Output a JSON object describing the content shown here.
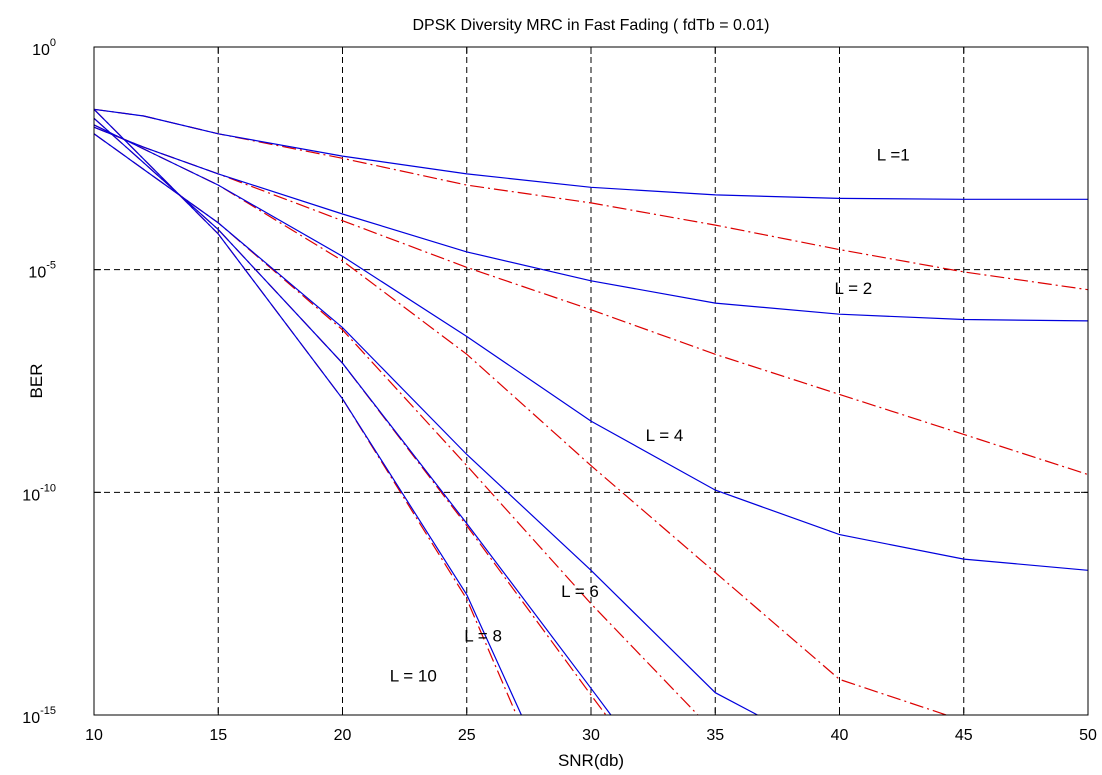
{
  "chart_data": {
    "type": "line",
    "title": "DPSK Diversity MRC in Fast Fading ( fdTb = 0.01)",
    "xlabel": "SNR(db)",
    "ylabel": "BER",
    "xlim": [
      10,
      50
    ],
    "ylim_log10": [
      -15,
      0
    ],
    "yscale": "log",
    "grid": true,
    "x_ticks": [
      10,
      15,
      20,
      25,
      30,
      35,
      40,
      45,
      50
    ],
    "y_ticks": [
      {
        "base": "10",
        "exp": "0",
        "value_log10": 0
      },
      {
        "base": "10",
        "exp": "-5",
        "value_log10": -5
      },
      {
        "base": "10",
        "exp": "-10",
        "value_log10": -10
      },
      {
        "base": "10",
        "exp": "-15",
        "value_log10": -15
      }
    ],
    "line_styles": {
      "fast_fading": {
        "color": "#0000dd",
        "dash": "solid"
      },
      "no_fading_reference": {
        "color": "#dd0000",
        "dash": "dashdot"
      }
    },
    "series": [
      {
        "label": "L =1",
        "label_x": 41.5,
        "label_y_log10": -2.55,
        "blue_log10_ber": [
          [
            10,
            -1.4
          ],
          [
            12,
            -1.55
          ],
          [
            15,
            -1.95
          ],
          [
            20,
            -2.45
          ],
          [
            25,
            -2.85
          ],
          [
            30,
            -3.15
          ],
          [
            35,
            -3.32
          ],
          [
            40,
            -3.4
          ],
          [
            45,
            -3.42
          ],
          [
            50,
            -3.42
          ]
        ],
        "red_log10_ber": [
          [
            10,
            -1.4
          ],
          [
            12,
            -1.55
          ],
          [
            15,
            -1.95
          ],
          [
            20,
            -2.5
          ],
          [
            25,
            -3.1
          ],
          [
            30,
            -3.5
          ],
          [
            35,
            -4.0
          ],
          [
            40,
            -4.55
          ],
          [
            45,
            -5.05
          ],
          [
            50,
            -5.45
          ]
        ]
      },
      {
        "label": "L = 2",
        "label_x": 39.8,
        "label_y_log10": -5.55,
        "blue_log10_ber": [
          [
            10,
            -1.8
          ],
          [
            12,
            -2.25
          ],
          [
            15,
            -2.85
          ],
          [
            20,
            -3.75
          ],
          [
            25,
            -4.6
          ],
          [
            30,
            -5.25
          ],
          [
            35,
            -5.75
          ],
          [
            40,
            -6.0
          ],
          [
            45,
            -6.12
          ],
          [
            50,
            -6.15
          ]
        ],
        "red_log10_ber": [
          [
            10,
            -1.8
          ],
          [
            12,
            -2.25
          ],
          [
            15,
            -2.85
          ],
          [
            20,
            -3.9
          ],
          [
            25,
            -4.95
          ],
          [
            30,
            -5.9
          ],
          [
            35,
            -6.9
          ],
          [
            40,
            -7.8
          ],
          [
            45,
            -8.7
          ],
          [
            50,
            -9.6
          ]
        ]
      },
      {
        "label": "L = 4",
        "label_x": 32.2,
        "label_y_log10": -8.85,
        "blue_log10_ber": [
          [
            10,
            -1.75
          ],
          [
            15,
            -3.1
          ],
          [
            20,
            -4.7
          ],
          [
            25,
            -6.5
          ],
          [
            30,
            -8.4
          ],
          [
            35,
            -9.95
          ],
          [
            40,
            -10.95
          ],
          [
            45,
            -11.5
          ],
          [
            50,
            -11.75
          ]
        ],
        "red_log10_ber": [
          [
            10,
            -1.75
          ],
          [
            15,
            -3.1
          ],
          [
            20,
            -4.8
          ],
          [
            25,
            -6.9
          ],
          [
            30,
            -9.4
          ],
          [
            35,
            -11.8
          ],
          [
            40,
            -14.2
          ],
          [
            44.3,
            -15.0
          ]
        ]
      },
      {
        "label": "L = 6",
        "label_x": 28.8,
        "label_y_log10": -12.35,
        "blue_log10_ber": [
          [
            10,
            -1.95
          ],
          [
            15,
            -3.95
          ],
          [
            20,
            -6.3
          ],
          [
            25,
            -9.15
          ],
          [
            30,
            -11.75
          ],
          [
            35,
            -14.5
          ],
          [
            36.7,
            -15.0
          ]
        ],
        "red_log10_ber": [
          [
            10,
            -1.95
          ],
          [
            15,
            -3.95
          ],
          [
            20,
            -6.35
          ],
          [
            25,
            -9.4
          ],
          [
            30,
            -12.5
          ],
          [
            34.3,
            -15.0
          ]
        ]
      },
      {
        "label": "L = 8",
        "label_x": 24.9,
        "label_y_log10": -13.35,
        "blue_log10_ber": [
          [
            10,
            -1.6
          ],
          [
            15,
            -4.1
          ],
          [
            20,
            -7.1
          ],
          [
            25,
            -10.7
          ],
          [
            30,
            -14.4
          ],
          [
            30.8,
            -15.0
          ]
        ],
        "red_log10_ber": [
          [
            10,
            -1.6
          ],
          [
            15,
            -4.1
          ],
          [
            20,
            -7.1
          ],
          [
            25,
            -10.75
          ],
          [
            30,
            -14.55
          ],
          [
            30.6,
            -15.0
          ]
        ]
      },
      {
        "label": "L = 10",
        "label_x": 21.9,
        "label_y_log10": -14.25,
        "blue_log10_ber": [
          [
            10,
            -1.4
          ],
          [
            15,
            -4.2
          ],
          [
            20,
            -7.9
          ],
          [
            25,
            -12.3
          ],
          [
            27.2,
            -15.0
          ]
        ],
        "red_log10_ber": [
          [
            10,
            -1.4
          ],
          [
            15,
            -4.2
          ],
          [
            20,
            -7.9
          ],
          [
            25,
            -12.4
          ],
          [
            27.0,
            -15.0
          ]
        ]
      }
    ]
  }
}
